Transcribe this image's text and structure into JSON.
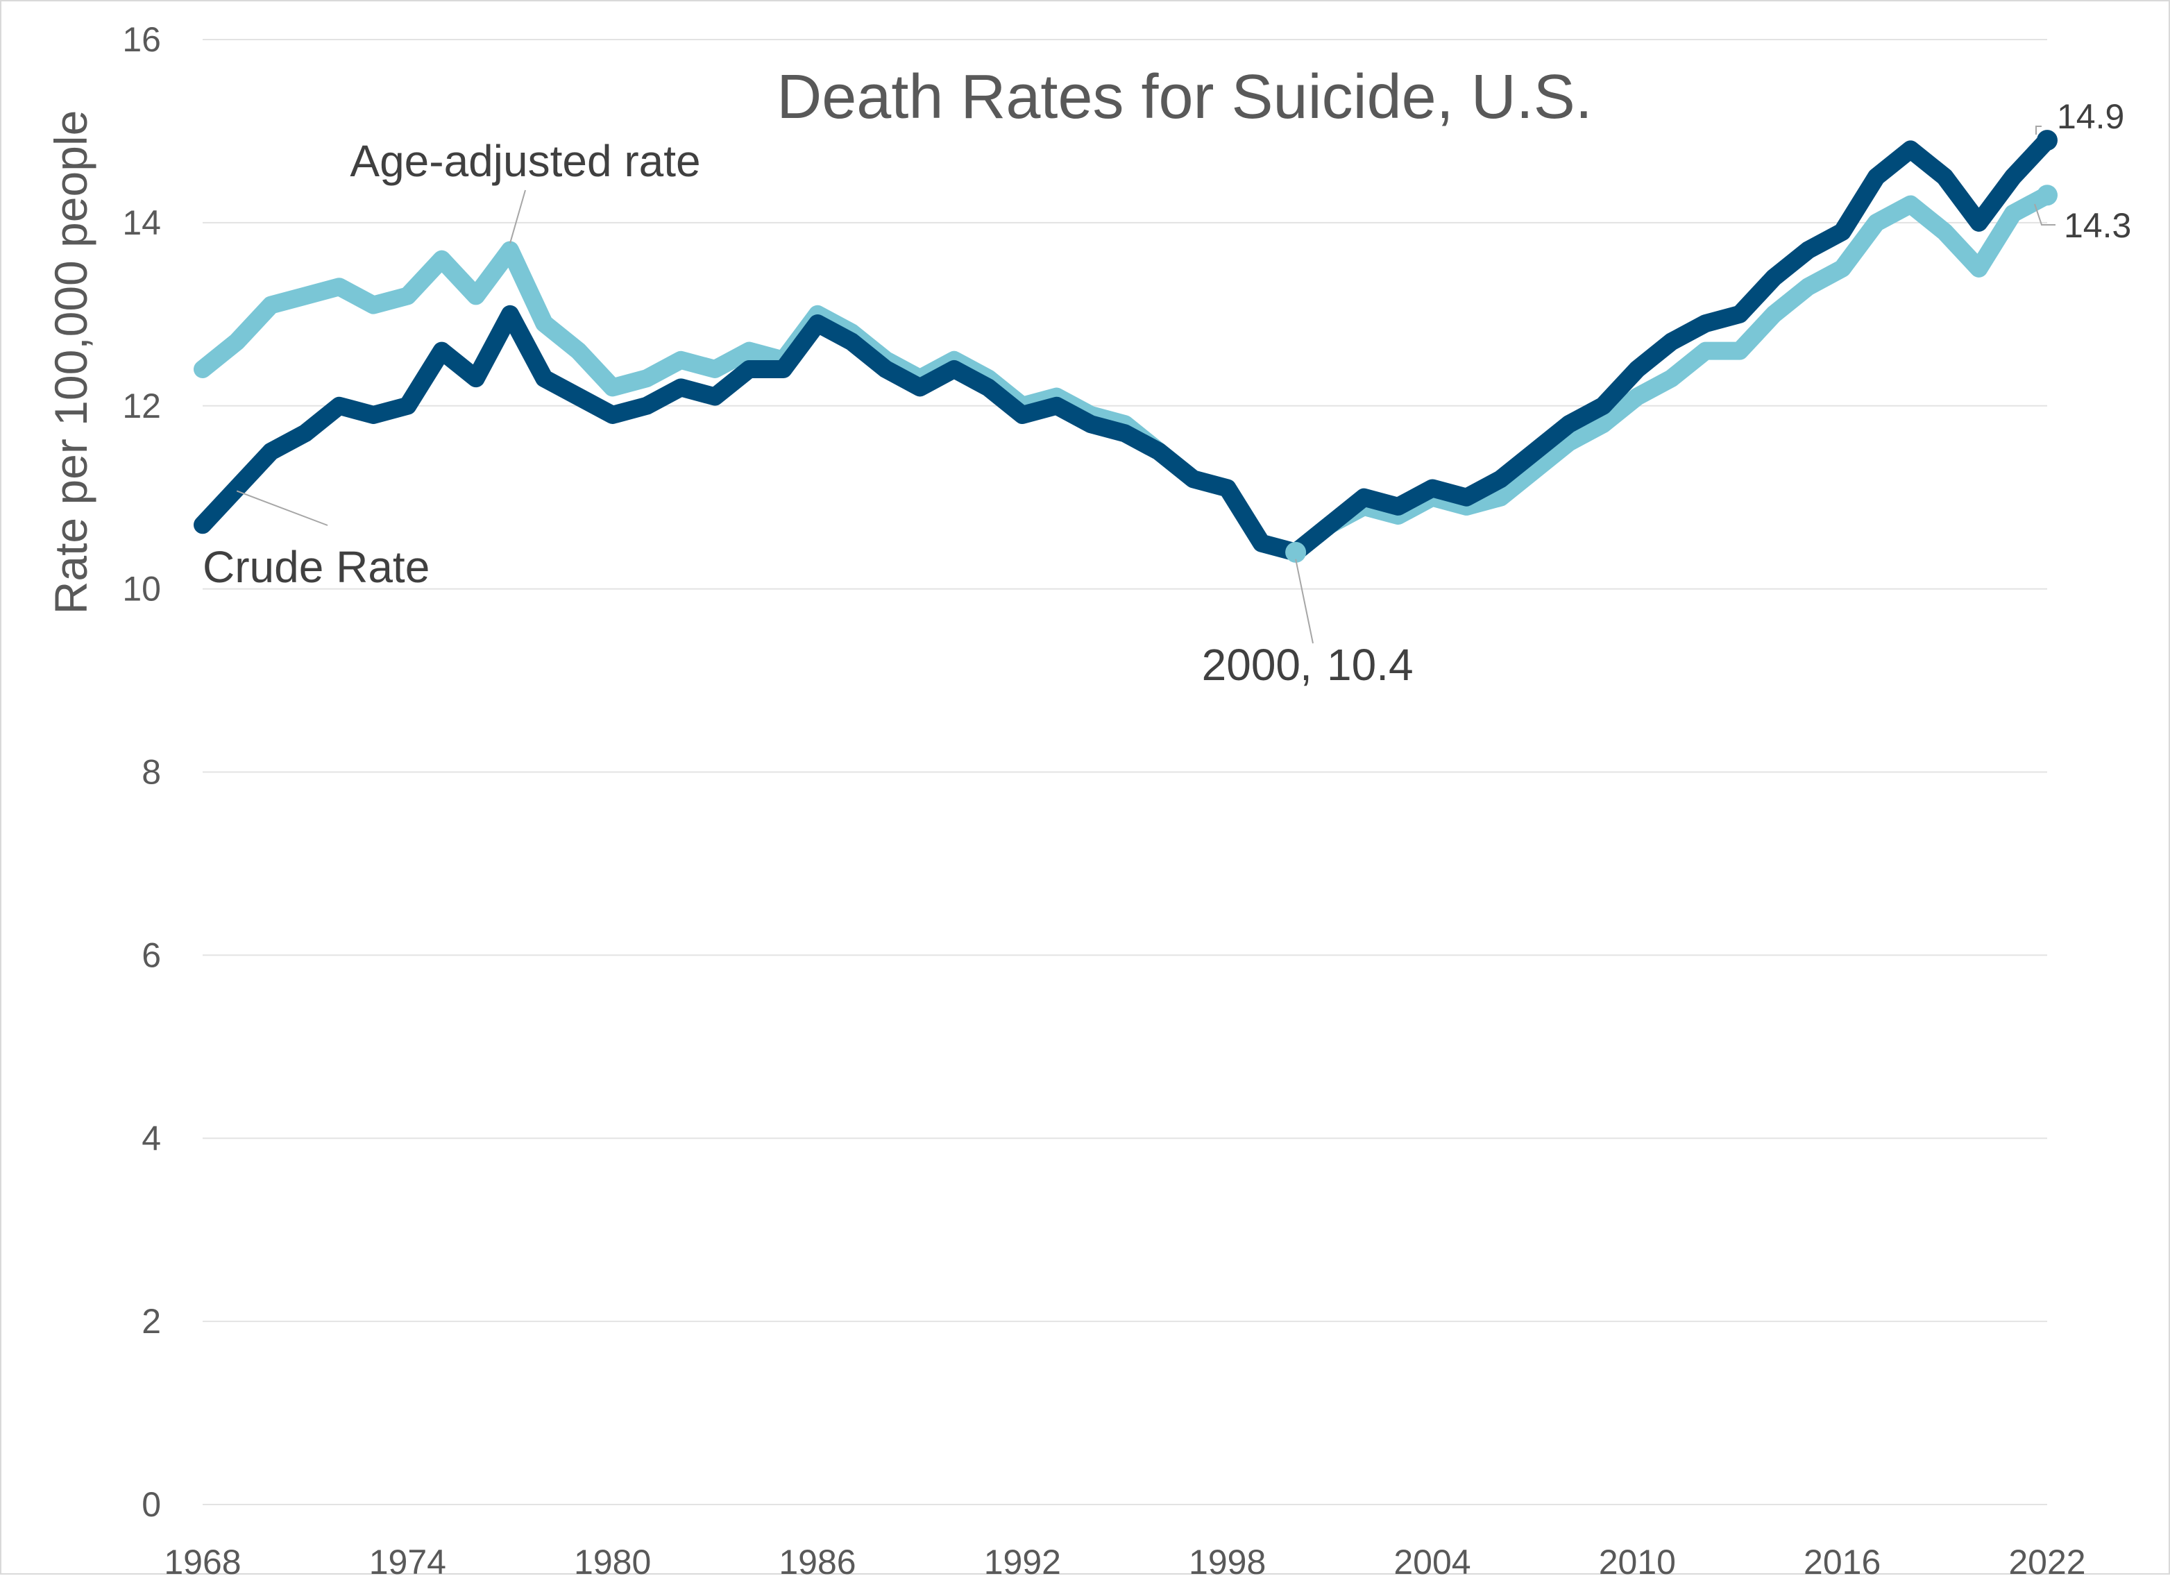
{
  "chart_data": {
    "type": "line",
    "title": "Death Rates for Suicide, U.S.",
    "xlabel": "",
    "ylabel": "Rate per 100,000 people",
    "xlim": [
      1968,
      2022
    ],
    "ylim": [
      0,
      16
    ],
    "x_ticks": [
      "1968",
      "1974",
      "1980",
      "1986",
      "1992",
      "1998",
      "2004",
      "2010",
      "2016",
      "2022"
    ],
    "y_ticks": [
      "0",
      "2",
      "4",
      "6",
      "8",
      "10",
      "12",
      "14",
      "16"
    ],
    "grid": true,
    "x": [
      1968,
      1969,
      1970,
      1971,
      1972,
      1973,
      1974,
      1975,
      1976,
      1977,
      1978,
      1979,
      1980,
      1981,
      1982,
      1983,
      1984,
      1985,
      1986,
      1987,
      1988,
      1989,
      1990,
      1991,
      1992,
      1993,
      1994,
      1995,
      1996,
      1997,
      1998,
      1999,
      2000,
      2001,
      2002,
      2003,
      2004,
      2005,
      2006,
      2007,
      2008,
      2009,
      2010,
      2011,
      2012,
      2013,
      2014,
      2015,
      2016,
      2017,
      2018,
      2019,
      2020,
      2021,
      2022
    ],
    "series": [
      {
        "name": "Crude Rate",
        "color": "#004b7a",
        "values": [
          10.7,
          11.1,
          11.5,
          11.7,
          12.0,
          11.9,
          12.0,
          12.6,
          12.3,
          13.0,
          12.3,
          12.1,
          11.9,
          12.0,
          12.2,
          12.1,
          12.4,
          12.4,
          12.9,
          12.7,
          12.4,
          12.2,
          12.4,
          12.2,
          11.9,
          12.0,
          11.8,
          11.7,
          11.5,
          11.2,
          11.1,
          10.5,
          10.4,
          10.7,
          11.0,
          10.9,
          11.1,
          11.0,
          11.2,
          11.5,
          11.8,
          12.0,
          12.4,
          12.7,
          12.9,
          13.0,
          13.4,
          13.7,
          13.9,
          14.5,
          14.8,
          14.5,
          14.0,
          14.5,
          14.9
        ]
      },
      {
        "name": "Age-adjusted rate",
        "color": "#7ac6d6",
        "values": [
          12.4,
          12.7,
          13.1,
          13.2,
          13.3,
          13.1,
          13.2,
          13.6,
          13.2,
          13.7,
          12.9,
          12.6,
          12.2,
          12.3,
          12.5,
          12.4,
          12.6,
          12.5,
          13.0,
          12.8,
          12.5,
          12.3,
          12.5,
          12.3,
          12.0,
          12.1,
          11.9,
          11.8,
          11.5,
          11.2,
          11.1,
          10.5,
          10.4,
          10.7,
          10.9,
          10.8,
          11.0,
          10.9,
          11.0,
          11.3,
          11.6,
          11.8,
          12.1,
          12.3,
          12.6,
          12.6,
          13.0,
          13.3,
          13.5,
          14.0,
          14.2,
          13.9,
          13.5,
          14.1,
          14.3
        ]
      }
    ],
    "annotations": [
      {
        "text": "Age-adjusted rate",
        "x": 1977,
        "y": 13.7,
        "series": "Age-adjusted rate"
      },
      {
        "text": "Crude Rate",
        "x": 1969,
        "y": 11.1,
        "series": "Crude Rate"
      },
      {
        "text_year": "2000",
        "text_value": "10.4",
        "x": 2000,
        "y": 10.4
      },
      {
        "text": "14.9",
        "x": 2022,
        "y": 14.9,
        "series": "Crude Rate"
      },
      {
        "text": "14.3",
        "x": 2022,
        "y": 14.3,
        "series": "Age-adjusted rate"
      }
    ]
  }
}
